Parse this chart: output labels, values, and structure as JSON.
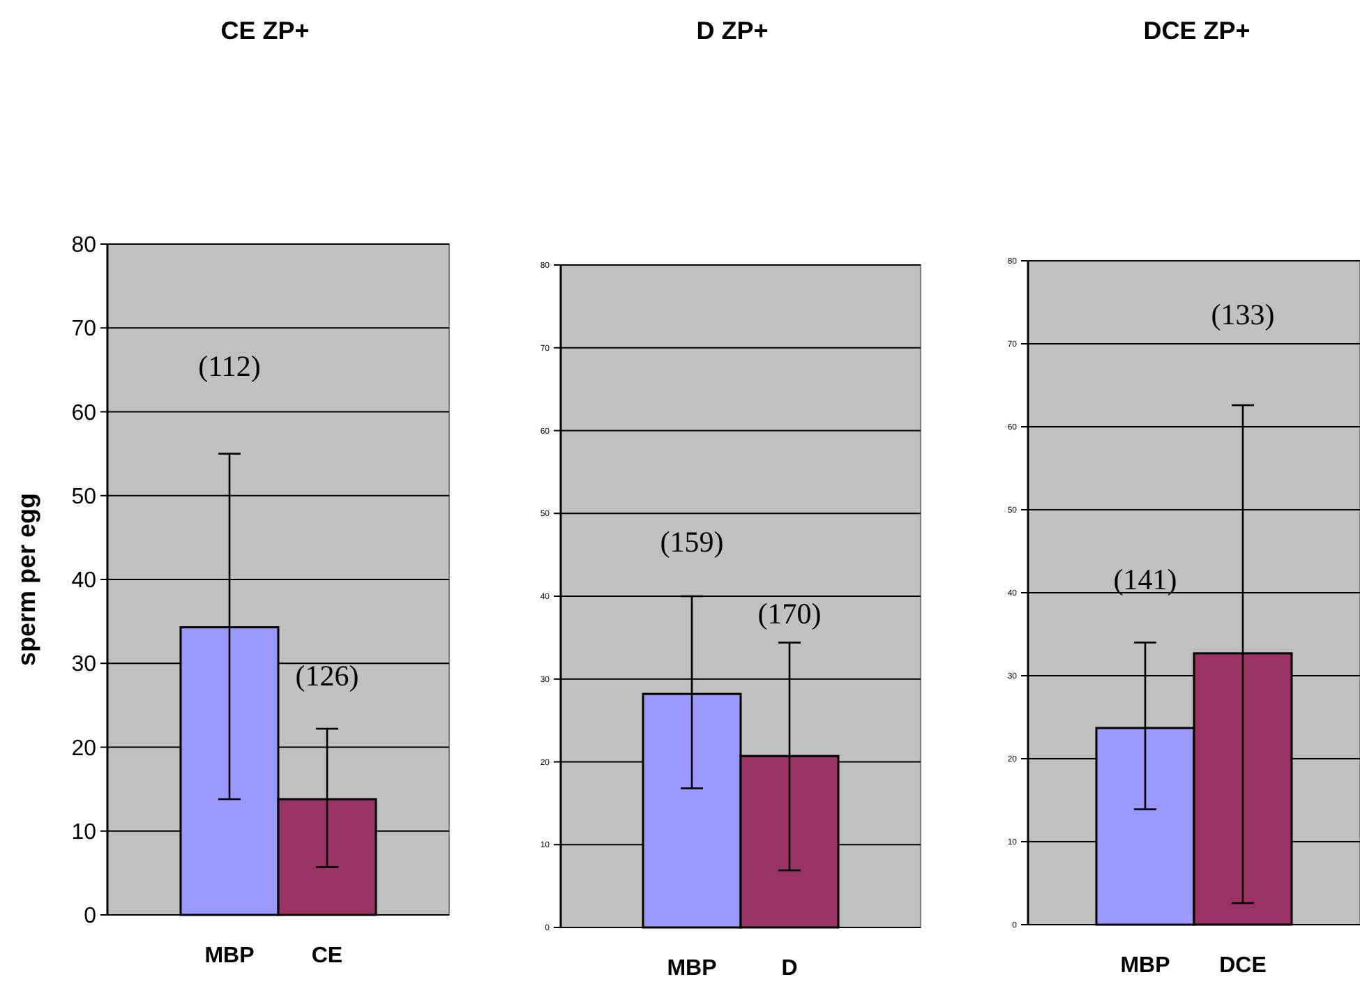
{
  "chart_data": [
    {
      "type": "bar",
      "title": "CE ZP+",
      "ylabel": "sperm per egg",
      "categories": [
        "MBP",
        "CE"
      ],
      "values": [
        34.3,
        13.8
      ],
      "colors": [
        "#9999ff",
        "#993366"
      ],
      "errors": [
        [
          13.8,
          55
        ],
        [
          5.7,
          22.2
        ]
      ],
      "ylim": [
        0,
        80
      ],
      "yticks": [
        0,
        10,
        20,
        30,
        40,
        50,
        60,
        70,
        80
      ],
      "grid": "y",
      "annotations": [
        "(112)",
        "(126)"
      ]
    },
    {
      "type": "bar",
      "title": "D ZP+",
      "categories": [
        "MBP",
        "D"
      ],
      "values": [
        28.2,
        20.7
      ],
      "colors": [
        "#9999ff",
        "#993366"
      ],
      "errors": [
        [
          16.8,
          40
        ],
        [
          6.9,
          34.4
        ]
      ],
      "ylim": [
        0,
        80
      ],
      "yticks": [
        0,
        10,
        20,
        30,
        40,
        50,
        60,
        70,
        80
      ],
      "grid": "y",
      "annotations": [
        "(159)",
        "(170)"
      ]
    },
    {
      "type": "bar",
      "title": "DCE ZP+",
      "categories": [
        "MBP",
        "DCE"
      ],
      "values": [
        23.7,
        32.7
      ],
      "colors": [
        "#9999ff",
        "#993366"
      ],
      "errors": [
        [
          13.9,
          34
        ],
        [
          2.6,
          62.6
        ]
      ],
      "ylim": [
        0,
        80
      ],
      "yticks": [
        0,
        10,
        20,
        30,
        40,
        50,
        60,
        70,
        80
      ],
      "grid": "y",
      "annotations": [
        "(141)",
        "(133)"
      ]
    }
  ]
}
